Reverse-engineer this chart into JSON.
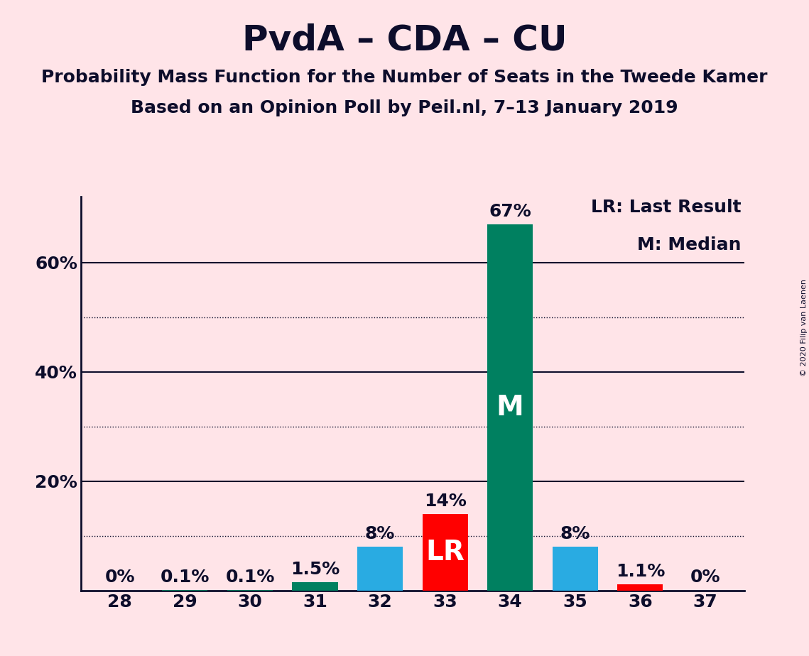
{
  "title": "PvdA – CDA – CU",
  "subtitle1": "Probability Mass Function for the Number of Seats in the Tweede Kamer",
  "subtitle2": "Based on an Opinion Poll by Peil.nl, 7–13 January 2019",
  "copyright": "© 2020 Filip van Laenen",
  "categories": [
    28,
    29,
    30,
    31,
    32,
    33,
    34,
    35,
    36,
    37
  ],
  "values": [
    0.0,
    0.1,
    0.1,
    1.5,
    8.0,
    14.0,
    67.0,
    8.0,
    1.1,
    0.0
  ],
  "labels": [
    "0%",
    "0.1%",
    "0.1%",
    "1.5%",
    "8%",
    "14%",
    "67%",
    "8%",
    "1.1%",
    "0%"
  ],
  "bar_colors": [
    "#008060",
    "#008060",
    "#008060",
    "#008060",
    "#29ABE2",
    "#FF0000",
    "#008060",
    "#29ABE2",
    "#FF0000",
    "#FF0000"
  ],
  "bar_inner_labels": [
    "",
    "",
    "",
    "",
    "",
    "LR",
    "M",
    "",
    "",
    ""
  ],
  "background_color": "#FFE4E8",
  "ylim": [
    0,
    72
  ],
  "solid_yticks": [
    20,
    40,
    60
  ],
  "dotted_yticks": [
    10,
    30,
    50
  ],
  "legend_text1": "LR: Last Result",
  "legend_text2": "M: Median",
  "title_fontsize": 36,
  "subtitle_fontsize": 18,
  "label_fontsize": 18,
  "axis_fontsize": 18,
  "inner_label_fontsize": 28,
  "text_color": "#0D0D2B"
}
